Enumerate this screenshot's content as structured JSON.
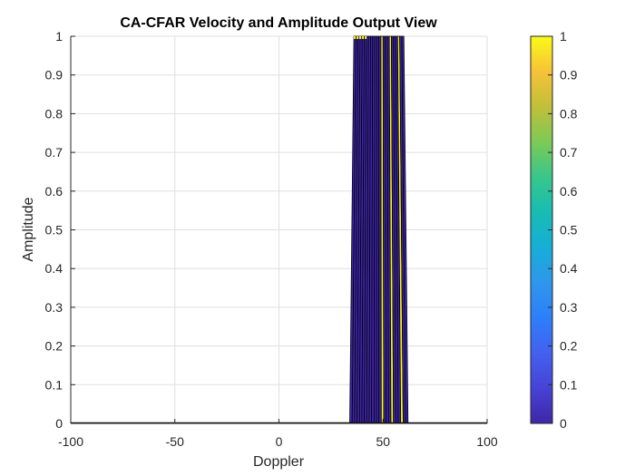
{
  "chart_data": {
    "type": "area",
    "title": "CA-CFAR Velocity and Amplitude Output View",
    "xlabel": "Doppler",
    "ylabel": "Amplitude",
    "xlim": [
      -100,
      100
    ],
    "ylim": [
      0,
      1
    ],
    "xticks": [
      -100,
      -50,
      0,
      50,
      100
    ],
    "xtick_labels": [
      "-100",
      "-50",
      "0",
      "50",
      "100"
    ],
    "yticks": [
      0,
      0.1,
      0.2,
      0.3,
      0.4,
      0.5,
      0.6,
      0.7,
      0.8,
      0.9,
      1
    ],
    "ytick_labels": [
      "0",
      "0.1",
      "0.2",
      "0.3",
      "0.4",
      "0.5",
      "0.6",
      "0.7",
      "0.8",
      "0.9",
      "1"
    ],
    "grid": true,
    "surface_columns": [
      {
        "x": 36,
        "value": 0
      },
      {
        "x": 37,
        "value": 0
      },
      {
        "x": 38,
        "value": 0
      },
      {
        "x": 39,
        "value": 0
      },
      {
        "x": 40,
        "value": 0
      },
      {
        "x": 41,
        "value": 0
      },
      {
        "x": 42,
        "value": 0
      },
      {
        "x": 43,
        "value": 0
      },
      {
        "x": 44,
        "value": 0
      },
      {
        "x": 45,
        "value": 0
      },
      {
        "x": 46,
        "value": 0
      },
      {
        "x": 47,
        "value": 0
      },
      {
        "x": 48,
        "value": 0
      },
      {
        "x": 49,
        "value": 1
      },
      {
        "x": 50,
        "value": 0
      },
      {
        "x": 51,
        "value": 0
      },
      {
        "x": 52,
        "value": 0
      },
      {
        "x": 53,
        "value": 1
      },
      {
        "x": 54,
        "value": 0
      },
      {
        "x": 55,
        "value": 0
      },
      {
        "x": 56,
        "value": 0
      },
      {
        "x": 57,
        "value": 1
      },
      {
        "x": 58,
        "value": 0
      },
      {
        "x": 59,
        "value": 0
      },
      {
        "x": 60,
        "value": 0
      }
    ],
    "surface_base_x": [
      34,
      62
    ],
    "colorbar": {
      "colormap": "parula",
      "range": [
        0,
        1
      ],
      "ticks": [
        0,
        0.1,
        0.2,
        0.3,
        0.4,
        0.5,
        0.6,
        0.7,
        0.8,
        0.9,
        1
      ],
      "tick_labels": [
        "0",
        "0.1",
        "0.2",
        "0.3",
        "0.4",
        "0.5",
        "0.6",
        "0.7",
        "0.8",
        "0.9",
        "1"
      ],
      "stops": [
        "#3e26a8",
        "#4743d6",
        "#4361ee",
        "#2d7ff9",
        "#2e97ec",
        "#17aed7",
        "#18bcb3",
        "#37c78a",
        "#7dca55",
        "#c1bf39",
        "#f6c23a",
        "#f9fb15"
      ]
    },
    "colors": {
      "low": "#3e26a8",
      "high": "#f9fb15",
      "edge": "#000000",
      "grid": "#dfdfdf",
      "axis": "#262626"
    }
  }
}
